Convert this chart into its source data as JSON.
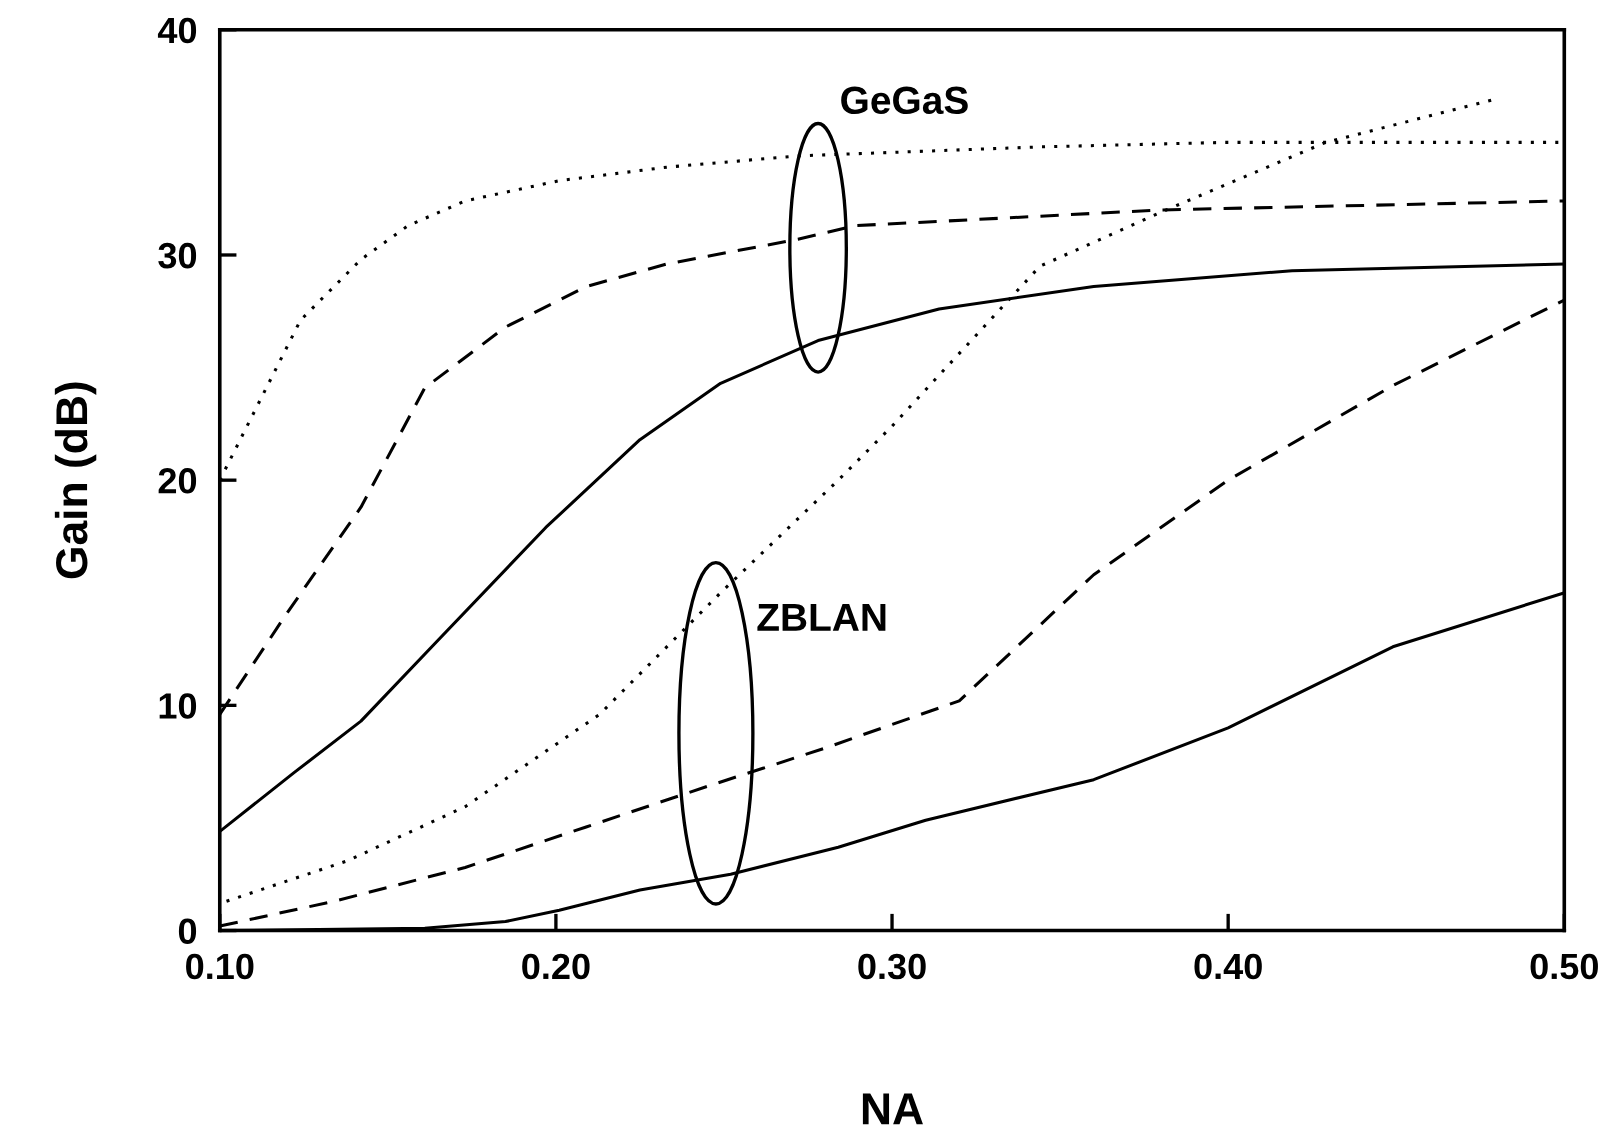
{
  "chart_data": {
    "type": "line",
    "xlabel": "NA",
    "ylabel": "Gain (dB)",
    "xlim": [
      0.1,
      0.5
    ],
    "ylim": [
      0,
      40
    ],
    "xticks": [
      {
        "value": 0.1,
        "label": "0.10"
      },
      {
        "value": 0.2,
        "label": "0.20"
      },
      {
        "value": 0.3,
        "label": "0.30"
      },
      {
        "value": 0.4,
        "label": "0.40"
      },
      {
        "value": 0.5,
        "label": "0.50"
      }
    ],
    "yticks": [
      0,
      10,
      20,
      30,
      40
    ],
    "grid": false,
    "legend": false,
    "marker": "none",
    "series": [
      {
        "color": "#000000",
        "line_style": "dotted",
        "x": [
          0.1,
          0.124,
          0.142,
          0.156,
          0.173,
          0.201,
          0.233,
          0.272,
          0.344,
          0.399,
          0.479,
          0.5
        ],
        "values": [
          20,
          27.1,
          29.8,
          31.3,
          32.4,
          33.3,
          33.9,
          34.4,
          34.8,
          35.0,
          35.0,
          35.0
        ]
      },
      {
        "color": "#000000",
        "line_style": "dashed",
        "x": [
          0.1,
          0.12,
          0.142,
          0.161,
          0.185,
          0.209,
          0.233,
          0.272,
          0.289,
          0.38,
          0.5
        ],
        "values": [
          9.6,
          14.1,
          18.8,
          24.1,
          26.8,
          28.6,
          29.6,
          30.7,
          31.3,
          32.0,
          32.4
        ]
      },
      {
        "color": "#000000",
        "line_style": "solid",
        "x": [
          0.1,
          0.122,
          0.142,
          0.165,
          0.197,
          0.225,
          0.249,
          0.278,
          0.314,
          0.36,
          0.419,
          0.5
        ],
        "values": [
          4.4,
          7.0,
          9.3,
          12.9,
          17.9,
          21.8,
          24.3,
          26.2,
          27.6,
          28.6,
          29.3,
          29.6
        ]
      },
      {
        "color": "#000000",
        "line_style": "dotted",
        "x": [
          0.102,
          0.138,
          0.173,
          0.213,
          0.249,
          0.284,
          0.3,
          0.344,
          0.38,
          0.429,
          0.479
        ],
        "values": [
          1.3,
          3.1,
          5.5,
          9.6,
          15.0,
          20.0,
          22.4,
          29.5,
          31.9,
          35.0,
          36.9
        ]
      },
      {
        "color": "#000000",
        "line_style": "dashed",
        "x": [
          0.1,
          0.134,
          0.173,
          0.209,
          0.245,
          0.28,
          0.32,
          0.36,
          0.4,
          0.449,
          0.5
        ],
        "values": [
          0.2,
          1.3,
          2.8,
          4.6,
          6.4,
          8.1,
          10.2,
          15.8,
          20.0,
          24.2,
          28.0
        ]
      },
      {
        "color": "#000000",
        "line_style": "solid",
        "x": [
          0.1,
          0.161,
          0.185,
          0.201,
          0.225,
          0.252,
          0.284,
          0.31,
          0.36,
          0.4,
          0.449,
          0.5
        ],
        "values": [
          0,
          0.1,
          0.4,
          0.9,
          1.8,
          2.5,
          3.7,
          4.9,
          6.7,
          9.0,
          12.6,
          15.0
        ]
      }
    ],
    "annotations": [
      "GeGaS",
      "ZBLAN"
    ]
  }
}
